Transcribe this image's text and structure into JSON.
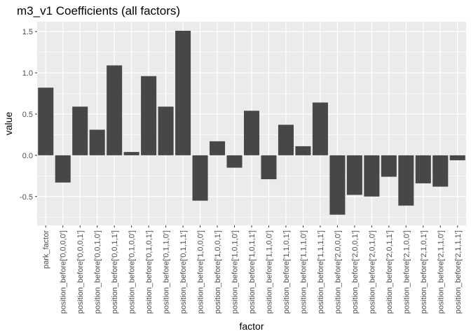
{
  "chart_data": {
    "type": "bar",
    "title": "m3_v1 Coefficients (all factors)",
    "xlabel": "factor",
    "ylabel": "value",
    "ylim": [
      -0.85,
      1.62
    ],
    "yticks": [
      -0.5,
      0.0,
      0.5,
      1.0,
      1.5
    ],
    "ytick_labels": [
      "-0.5",
      "0.0",
      "0.5",
      "1.0",
      "1.5"
    ],
    "grid": true,
    "colors": {
      "panel": "#ebebeb",
      "grid_major": "#ffffff",
      "bar": "#474747",
      "tick_text": "#4d4d4d",
      "tick_mark": "#333333"
    },
    "categories": [
      "park_factor",
      "position_before['0,0,0,0']",
      "position_before['0,0,0,1']",
      "position_before['0,0,1,0']",
      "position_before['0,0,1,1']",
      "position_before['0,1,0,0']",
      "position_before['0,1,0,1']",
      "position_before['0,1,1,0']",
      "position_before['0,1,1,1']",
      "position_before['1,0,0,0']",
      "position_before['1,0,0,1']",
      "position_before['1,0,1,0']",
      "position_before['1,0,1,1']",
      "position_before['1,1,0,0']",
      "position_before['1,1,0,1']",
      "position_before['1,1,1,0']",
      "position_before['1,1,1,1']",
      "position_before['2,0,0,0']",
      "position_before['2,0,0,1']",
      "position_before['2,0,1,0']",
      "position_before['2,0,1,1']",
      "position_before['2,1,0,0']",
      "position_before['2,1,0,1']",
      "position_before['2,1,1,0']",
      "position_before['2,1,1,1']"
    ],
    "values": [
      0.82,
      -0.33,
      0.59,
      0.31,
      1.09,
      0.04,
      0.96,
      0.59,
      1.51,
      -0.55,
      0.17,
      -0.15,
      0.54,
      -0.29,
      0.37,
      0.11,
      0.64,
      -0.72,
      -0.48,
      -0.5,
      -0.26,
      -0.61,
      -0.34,
      -0.38,
      -0.06
    ]
  }
}
